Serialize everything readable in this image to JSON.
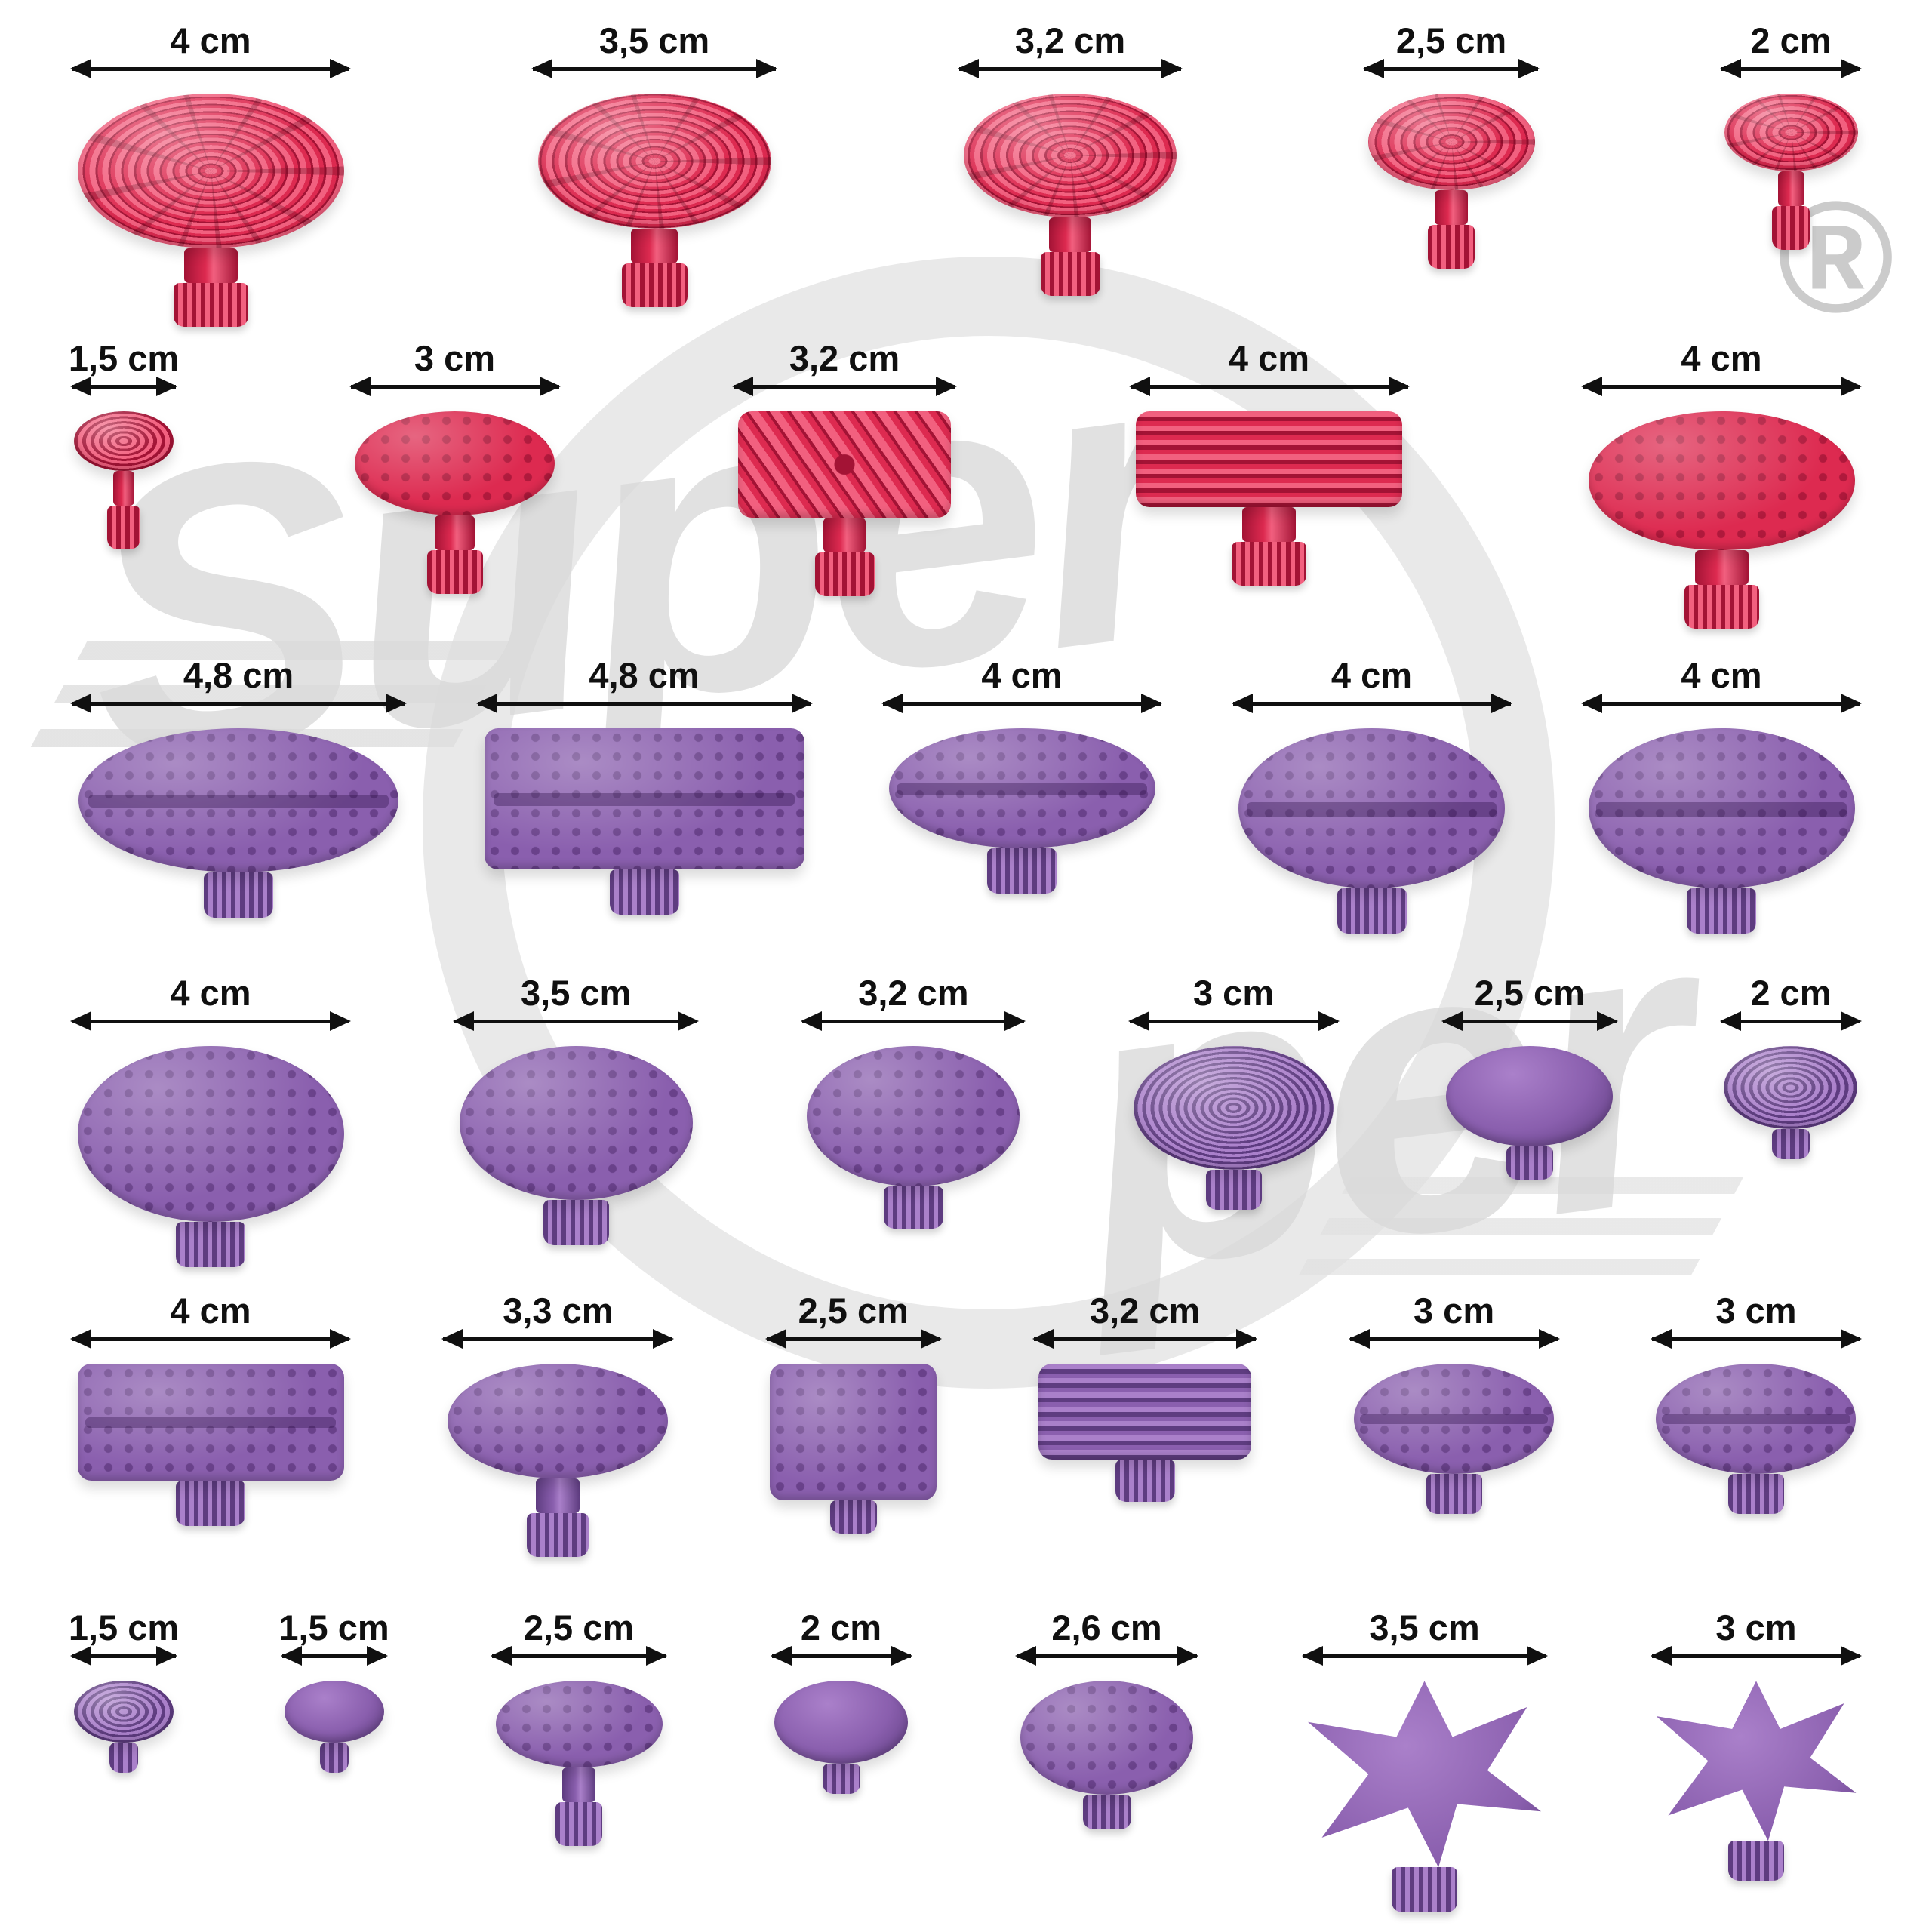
{
  "watermark": {
    "text_top": "Super",
    "text_bottom": "per",
    "registered": "®"
  },
  "colors": {
    "red": "#dd2a50",
    "red_dark": "#a31335",
    "purple": "#8a5fae",
    "purple_dark": "#5e3c80",
    "arrow": "#101010",
    "watermark_gray": "#dadada"
  },
  "rows": [
    {
      "name": "red-round-grooved-tabs",
      "color": "red",
      "items": [
        {
          "label": "4 cm",
          "cm": 4,
          "shape": "grooved-disc"
        },
        {
          "label": "3,5 cm",
          "cm": 3.5,
          "shape": "grooved-disc"
        },
        {
          "label": "3,2 cm",
          "cm": 3.2,
          "shape": "grooved-disc"
        },
        {
          "label": "2,5 cm",
          "cm": 2.5,
          "shape": "grooved-disc"
        },
        {
          "label": "2 cm",
          "cm": 2,
          "shape": "grooved-disc"
        }
      ]
    },
    {
      "name": "red-shaped-tabs",
      "color": "red",
      "items": [
        {
          "label": "1,5 cm",
          "cm": 1.5,
          "shape": "rings-disc"
        },
        {
          "label": "3 cm",
          "cm": 3,
          "shape": "dotted-oval"
        },
        {
          "label": "3,2 cm",
          "cm": 3.2,
          "shape": "rect-diagonal"
        },
        {
          "label": "4 cm",
          "cm": 4,
          "shape": "rect-ridged"
        },
        {
          "label": "4 cm",
          "cm": 4,
          "shape": "dotted-oval"
        }
      ]
    },
    {
      "name": "purple-large-oval-tabs",
      "color": "purple",
      "items": [
        {
          "label": "4,8 cm",
          "cm": 4.8,
          "shape": "oval-line-wide"
        },
        {
          "label": "4,8 cm",
          "cm": 4.8,
          "shape": "dotted-rect"
        },
        {
          "label": "4 cm",
          "cm": 4,
          "shape": "oval-line-wide"
        },
        {
          "label": "4 cm",
          "cm": 4,
          "shape": "disc-line"
        },
        {
          "label": "4 cm",
          "cm": 4,
          "shape": "disc-line"
        }
      ]
    },
    {
      "name": "purple-round-tabs",
      "color": "purple",
      "items": [
        {
          "label": "4 cm",
          "cm": 4,
          "shape": "dotted-disc"
        },
        {
          "label": "3,5 cm",
          "cm": 3.5,
          "shape": "dotted-disc"
        },
        {
          "label": "3,2 cm",
          "cm": 3.2,
          "shape": "dotted-disc"
        },
        {
          "label": "3 cm",
          "cm": 3,
          "shape": "dome-rings"
        },
        {
          "label": "2,5 cm",
          "cm": 2.5,
          "shape": "dome"
        },
        {
          "label": "2 cm",
          "cm": 2,
          "shape": "dome-rings"
        }
      ]
    },
    {
      "name": "purple-oval-tabs",
      "color": "purple",
      "items": [
        {
          "label": "4 cm",
          "cm": 4,
          "shape": "dotted-rect"
        },
        {
          "label": "3,3 cm",
          "cm": 3.3,
          "shape": "dotted-oval"
        },
        {
          "label": "2,5 cm",
          "cm": 2.5,
          "shape": "dotted-square"
        },
        {
          "label": "3,2 cm",
          "cm": 3.2,
          "shape": "rect-grooved"
        },
        {
          "label": "3 cm",
          "cm": 3,
          "shape": "oval-line"
        },
        {
          "label": "3 cm",
          "cm": 3,
          "shape": "oval-line"
        }
      ]
    },
    {
      "name": "purple-small-tabs",
      "color": "purple",
      "items": [
        {
          "label": "1,5 cm",
          "cm": 1.5,
          "shape": "dome-rings"
        },
        {
          "label": "1,5 cm",
          "cm": 1.5,
          "shape": "plain-disc"
        },
        {
          "label": "2,5 cm",
          "cm": 2.5,
          "shape": "dotted-oval"
        },
        {
          "label": "2 cm",
          "cm": 2,
          "shape": "plain-disc"
        },
        {
          "label": "2,6 cm",
          "cm": 2.6,
          "shape": "dotted-disc"
        },
        {
          "label": "3,5 cm",
          "cm": 3.5,
          "shape": "star"
        },
        {
          "label": "3 cm",
          "cm": 3,
          "shape": "star"
        }
      ]
    }
  ]
}
